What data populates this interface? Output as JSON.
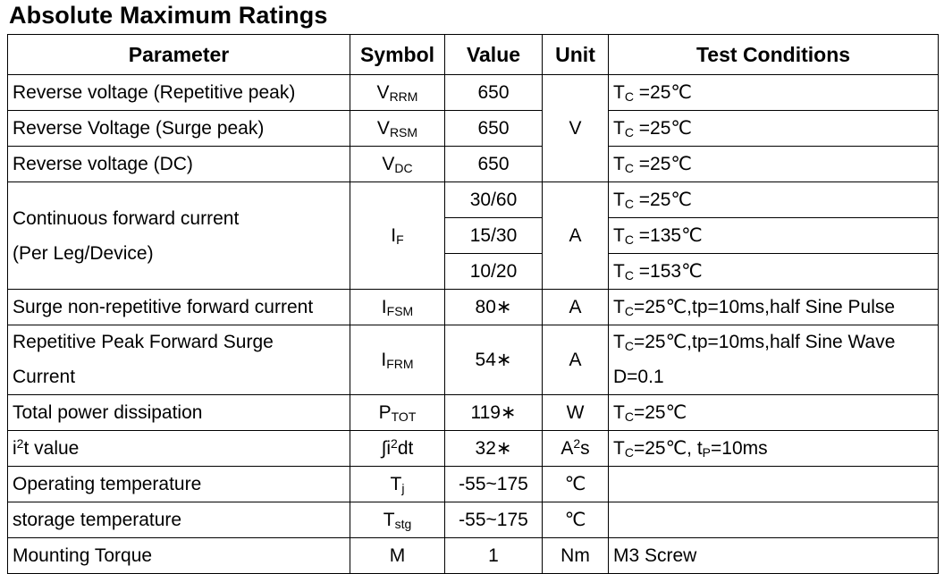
{
  "title": "Absolute Maximum Ratings",
  "headers": {
    "parameter": "Parameter",
    "symbol": "Symbol",
    "value": "Value",
    "unit": "Unit",
    "conditions": "Test Conditions"
  },
  "rows": {
    "vrrm": {
      "param": "Reverse voltage (Repetitive peak)",
      "sym": "V",
      "sub": "RRM",
      "value": "650",
      "cond_main": "T",
      "cond_sub": "C",
      "cond_rest": " =25℃"
    },
    "vrsm": {
      "param": "Reverse Voltage (Surge peak)",
      "sym": "V",
      "sub": "RSM",
      "value": "650",
      "cond_main": "T",
      "cond_sub": "C",
      "cond_rest": " =25℃"
    },
    "vdc": {
      "param": "Reverse voltage (DC)",
      "sym": "V",
      "sub": "DC",
      "value": "650",
      "cond_main": "T",
      "cond_sub": "C",
      "cond_rest": " =25℃"
    },
    "voltage_unit": "V",
    "if": {
      "param_line1": "Continuous forward current",
      "param_line2": "(Per Leg/Device)",
      "sym": "I",
      "sub": "F",
      "unit": "A",
      "values": [
        "30/60",
        "15/30",
        "10/20"
      ],
      "cond_rest": [
        " =25℃",
        " =135℃",
        " =153℃"
      ],
      "cond_main": "T",
      "cond_sub": "C"
    },
    "ifsm": {
      "param": "Surge non-repetitive forward current",
      "sym": "I",
      "sub": "FSM",
      "value": "80∗",
      "unit": "A",
      "cond_main": "T",
      "cond_sub": "C",
      "cond_rest": "=25℃,tp=10ms,half Sine Pulse"
    },
    "ifrm": {
      "param_line1": "Repetitive Peak Forward Surge",
      "param_line2": "Current",
      "sym": "I",
      "sub": "FRM",
      "value": "54∗",
      "unit": "A",
      "cond_main": "T",
      "cond_sub": "C",
      "cond_rest": "=25℃,tp=10ms,half Sine Wave",
      "cond_line2": "D=0.1"
    },
    "ptot": {
      "param": "Total power dissipation",
      "sym": "P",
      "sub": "TOT",
      "value": "119∗",
      "unit": "W",
      "cond_main": "T",
      "cond_sub": "C",
      "cond_rest": "=25℃"
    },
    "i2t": {
      "param_a": "i",
      "param_sup": "2",
      "param_b": "t value",
      "sym_a": "∫i",
      "sym_sup": "2",
      "sym_b": "dt",
      "value": "32∗",
      "unit_a": "A",
      "unit_sup": "2",
      "unit_b": "s",
      "cond_main": "T",
      "cond_sub": "C",
      "cond_mid": "=25℃, t",
      "cond_sub2": "P",
      "cond_end": "=10ms"
    },
    "tj": {
      "param": "Operating temperature",
      "sym": "T",
      "sub": "j",
      "value": "-55~175",
      "unit": "℃",
      "cond": ""
    },
    "tstg": {
      "param": "storage temperature",
      "sym": "T",
      "sub": "stg",
      "value": "-55~175",
      "unit": "℃",
      "cond": ""
    },
    "torque": {
      "param": "Mounting Torque",
      "sym": "M",
      "value": "1",
      "unit": "Nm",
      "cond": "M3 Screw"
    }
  }
}
